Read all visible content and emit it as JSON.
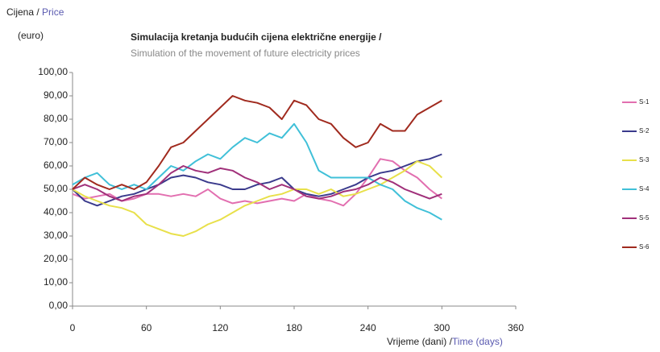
{
  "chart_data": {
    "type": "line",
    "title": "Simulacija kretanja budućih cijena električne energije /",
    "subtitle": "Simulation of the movement of future electricity prices",
    "y_label": [
      "Cijena / ",
      "Price",
      "(euro)"
    ],
    "x_label": [
      "Vrijeme (dani) /",
      "Time (days)"
    ],
    "x": [
      0,
      10,
      20,
      30,
      40,
      50,
      60,
      70,
      80,
      90,
      100,
      110,
      120,
      130,
      140,
      150,
      160,
      170,
      180,
      190,
      200,
      210,
      220,
      230,
      240,
      250,
      260,
      270,
      280,
      290,
      300
    ],
    "series": [
      {
        "name": "S-1",
        "color": "#e26fb0",
        "values": [
          48,
          46,
          47,
          48,
          45,
          46,
          48,
          48,
          47,
          48,
          47,
          50,
          46,
          44,
          45,
          44,
          45,
          46,
          45,
          48,
          46,
          45,
          43,
          48,
          55,
          63,
          62,
          58,
          55,
          50,
          46
        ]
      },
      {
        "name": "S-2",
        "color": "#3a3a8c",
        "values": [
          50,
          45,
          43,
          45,
          47,
          48,
          50,
          52,
          55,
          56,
          55,
          53,
          52,
          50,
          50,
          52,
          53,
          55,
          50,
          48,
          47,
          48,
          50,
          52,
          55,
          57,
          58,
          60,
          62,
          63,
          65
        ]
      },
      {
        "name": "S-3",
        "color": "#e8e04a",
        "values": [
          50,
          47,
          45,
          43,
          42,
          40,
          35,
          33,
          31,
          30,
          32,
          35,
          37,
          40,
          43,
          45,
          47,
          48,
          50,
          50,
          48,
          50,
          47,
          48,
          50,
          52,
          55,
          58,
          62,
          60,
          55
        ]
      },
      {
        "name": "S-4",
        "color": "#40c0d8",
        "values": [
          52,
          55,
          57,
          52,
          50,
          52,
          50,
          55,
          60,
          58,
          62,
          65,
          63,
          68,
          72,
          70,
          74,
          72,
          78,
          70,
          58,
          55,
          55,
          55,
          55,
          52,
          50,
          45,
          42,
          40,
          37
        ]
      },
      {
        "name": "S-5",
        "color": "#a0307a",
        "values": [
          50,
          52,
          50,
          47,
          45,
          47,
          48,
          52,
          57,
          60,
          58,
          57,
          59,
          58,
          55,
          53,
          50,
          52,
          50,
          47,
          46,
          47,
          49,
          50,
          52,
          55,
          53,
          50,
          48,
          46,
          48
        ]
      },
      {
        "name": "S-6",
        "color": "#a02a1e",
        "values": [
          50,
          55,
          52,
          50,
          52,
          50,
          53,
          60,
          68,
          70,
          75,
          80,
          85,
          90,
          88,
          87,
          85,
          80,
          88,
          86,
          80,
          78,
          72,
          68,
          70,
          78,
          75,
          75,
          82,
          85,
          88
        ]
      }
    ],
    "xlim": [
      0,
      360
    ],
    "xticks": [
      0,
      60,
      120,
      180,
      240,
      300,
      360
    ],
    "ylim": [
      0,
      100
    ],
    "yticks": [
      {
        "value": 0,
        "label": "0,00"
      },
      {
        "value": 10,
        "label": "10,00"
      },
      {
        "value": 20,
        "label": "20,00"
      },
      {
        "value": 30,
        "label": "30,00"
      },
      {
        "value": 40,
        "label": "40,00"
      },
      {
        "value": 50,
        "label": "50,00"
      },
      {
        "value": 60,
        "label": "60,00"
      },
      {
        "value": 70,
        "label": "70,00"
      },
      {
        "value": 80,
        "label": "80,00"
      },
      {
        "value": 90,
        "label": "90,00"
      },
      {
        "value": 100,
        "label": "100,00"
      }
    ],
    "legend": "right"
  }
}
